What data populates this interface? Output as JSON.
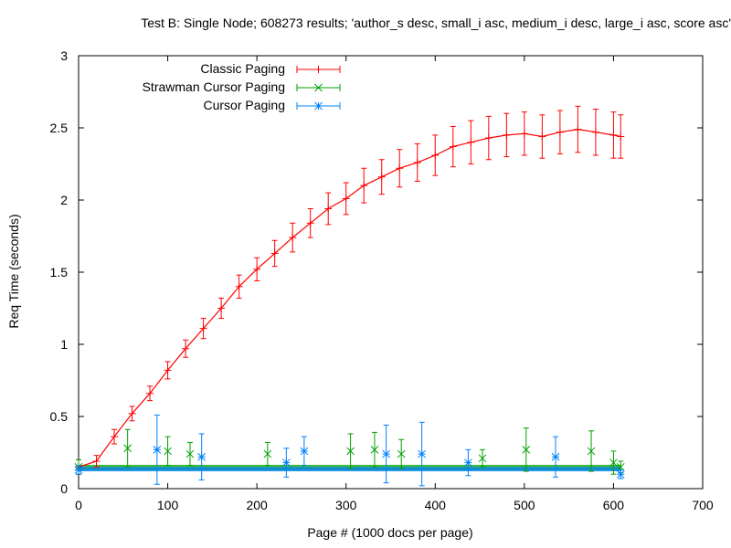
{
  "chart_data": {
    "type": "line",
    "title": "Test B: Single Node; 608273 results; 'author_s desc, small_i asc, medium_i desc, large_i asc, score asc'",
    "xlabel": "Page # (1000 docs per page)",
    "ylabel": "Req Time (seconds)",
    "xlim": [
      0,
      700
    ],
    "ylim": [
      0,
      3
    ],
    "xticks": [
      0,
      100,
      200,
      300,
      400,
      500,
      600,
      700
    ],
    "yticks": [
      0,
      0.5,
      1,
      1.5,
      2,
      2.5,
      3
    ],
    "legend_position": "top-left",
    "series": [
      {
        "name": "Classic Paging",
        "color": "#ff0000",
        "marker": "plus",
        "points": [
          {
            "x": 0,
            "y": 0.15,
            "err": 0.05
          },
          {
            "x": 20,
            "y": 0.19,
            "err": 0.04
          },
          {
            "x": 40,
            "y": 0.36,
            "err": 0.05
          },
          {
            "x": 60,
            "y": 0.52,
            "err": 0.05
          },
          {
            "x": 80,
            "y": 0.66,
            "err": 0.05
          },
          {
            "x": 100,
            "y": 0.82,
            "err": 0.06
          },
          {
            "x": 120,
            "y": 0.97,
            "err": 0.06
          },
          {
            "x": 140,
            "y": 1.11,
            "err": 0.07
          },
          {
            "x": 160,
            "y": 1.25,
            "err": 0.07
          },
          {
            "x": 180,
            "y": 1.4,
            "err": 0.08
          },
          {
            "x": 200,
            "y": 1.52,
            "err": 0.08
          },
          {
            "x": 220,
            "y": 1.63,
            "err": 0.09
          },
          {
            "x": 240,
            "y": 1.74,
            "err": 0.1
          },
          {
            "x": 260,
            "y": 1.84,
            "err": 0.1
          },
          {
            "x": 280,
            "y": 1.94,
            "err": 0.11
          },
          {
            "x": 300,
            "y": 2.01,
            "err": 0.11
          },
          {
            "x": 320,
            "y": 2.1,
            "err": 0.12
          },
          {
            "x": 340,
            "y": 2.16,
            "err": 0.12
          },
          {
            "x": 360,
            "y": 2.22,
            "err": 0.13
          },
          {
            "x": 380,
            "y": 2.26,
            "err": 0.13
          },
          {
            "x": 400,
            "y": 2.31,
            "err": 0.14
          },
          {
            "x": 420,
            "y": 2.37,
            "err": 0.14
          },
          {
            "x": 440,
            "y": 2.4,
            "err": 0.15
          },
          {
            "x": 460,
            "y": 2.43,
            "err": 0.15
          },
          {
            "x": 480,
            "y": 2.45,
            "err": 0.15
          },
          {
            "x": 500,
            "y": 2.46,
            "err": 0.15
          },
          {
            "x": 520,
            "y": 2.44,
            "err": 0.15
          },
          {
            "x": 540,
            "y": 2.47,
            "err": 0.15
          },
          {
            "x": 560,
            "y": 2.49,
            "err": 0.16
          },
          {
            "x": 580,
            "y": 2.47,
            "err": 0.16
          },
          {
            "x": 600,
            "y": 2.45,
            "err": 0.16
          },
          {
            "x": 608,
            "y": 2.44,
            "err": 0.15
          }
        ]
      },
      {
        "name": "Strawman Cursor Paging",
        "color": "#00a000",
        "marker": "x",
        "points": [
          {
            "x": 0,
            "y": 0.15,
            "err": 0.05
          },
          {
            "x": 55,
            "y": 0.28,
            "err": 0.13
          },
          {
            "x": 100,
            "y": 0.26,
            "err": 0.1
          },
          {
            "x": 125,
            "y": 0.24,
            "err": 0.08
          },
          {
            "x": 212,
            "y": 0.24,
            "err": 0.08
          },
          {
            "x": 305,
            "y": 0.26,
            "err": 0.12
          },
          {
            "x": 332,
            "y": 0.27,
            "err": 0.12
          },
          {
            "x": 362,
            "y": 0.24,
            "err": 0.1
          },
          {
            "x": 453,
            "y": 0.21,
            "err": 0.06
          },
          {
            "x": 502,
            "y": 0.27,
            "err": 0.15
          },
          {
            "x": 575,
            "y": 0.26,
            "err": 0.14
          },
          {
            "x": 600,
            "y": 0.18,
            "err": 0.08
          },
          {
            "x": 608,
            "y": 0.15,
            "err": 0.04
          }
        ]
      },
      {
        "name": "Cursor Paging",
        "color": "#0080ff",
        "marker": "star",
        "points": [
          {
            "x": 0,
            "y": 0.13,
            "err": 0.03
          },
          {
            "x": 88,
            "y": 0.27,
            "err": 0.24
          },
          {
            "x": 138,
            "y": 0.22,
            "err": 0.16
          },
          {
            "x": 233,
            "y": 0.18,
            "err": 0.1
          },
          {
            "x": 253,
            "y": 0.26,
            "err": 0.1
          },
          {
            "x": 345,
            "y": 0.24,
            "err": 0.2
          },
          {
            "x": 385,
            "y": 0.24,
            "err": 0.22
          },
          {
            "x": 437,
            "y": 0.18,
            "err": 0.09
          },
          {
            "x": 535,
            "y": 0.22,
            "err": 0.14
          },
          {
            "x": 608,
            "y": 0.1,
            "err": 0.03
          }
        ]
      }
    ],
    "baseline_bands": [
      {
        "series": "Strawman Cursor Paging",
        "y": 0.145,
        "err": 0.02
      },
      {
        "series": "Cursor Paging",
        "y": 0.135,
        "err": 0.015
      }
    ]
  }
}
